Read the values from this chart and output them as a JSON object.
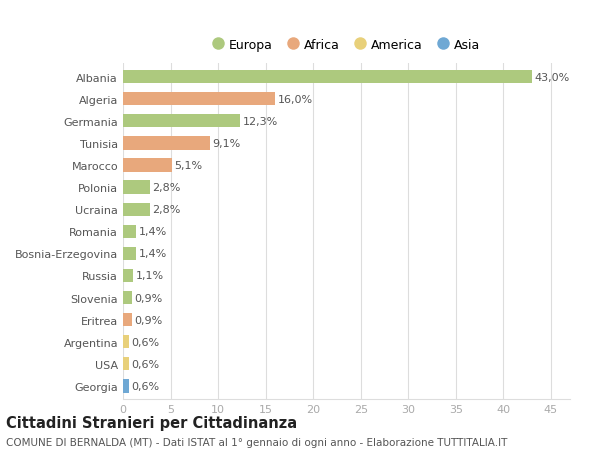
{
  "countries": [
    "Albania",
    "Algeria",
    "Germania",
    "Tunisia",
    "Marocco",
    "Polonia",
    "Ucraina",
    "Romania",
    "Bosnia-Erzegovina",
    "Russia",
    "Slovenia",
    "Eritrea",
    "Argentina",
    "USA",
    "Georgia"
  ],
  "values": [
    43.0,
    16.0,
    12.3,
    9.1,
    5.1,
    2.8,
    2.8,
    1.4,
    1.4,
    1.1,
    0.9,
    0.9,
    0.6,
    0.6,
    0.6
  ],
  "labels": [
    "43,0%",
    "16,0%",
    "12,3%",
    "9,1%",
    "5,1%",
    "2,8%",
    "2,8%",
    "1,4%",
    "1,4%",
    "1,1%",
    "0,9%",
    "0,9%",
    "0,6%",
    "0,6%",
    "0,6%"
  ],
  "continents": [
    "Europa",
    "Africa",
    "Europa",
    "Africa",
    "Africa",
    "Europa",
    "Europa",
    "Europa",
    "Europa",
    "Europa",
    "Europa",
    "Africa",
    "America",
    "America",
    "Asia"
  ],
  "colors": {
    "Europa": "#adc97e",
    "Africa": "#e8a87c",
    "America": "#e8d07a",
    "Asia": "#6fa8d4"
  },
  "legend_order": [
    "Europa",
    "Africa",
    "America",
    "Asia"
  ],
  "title_bold": "Cittadini Stranieri per Cittadinanza",
  "subtitle": "COMUNE DI BERNALDA (MT) - Dati ISTAT al 1° gennaio di ogni anno - Elaborazione TUTTITALIA.IT",
  "xlim": [
    0,
    47
  ],
  "xticks": [
    0,
    5,
    10,
    15,
    20,
    25,
    30,
    35,
    40,
    45
  ],
  "bg_color": "#ffffff",
  "grid_color": "#dddddd",
  "bar_height": 0.6,
  "label_fontsize": 8.0,
  "tick_fontsize": 8.0,
  "ytick_fontsize": 8.0,
  "title_fontsize": 10.5,
  "subtitle_fontsize": 7.5
}
